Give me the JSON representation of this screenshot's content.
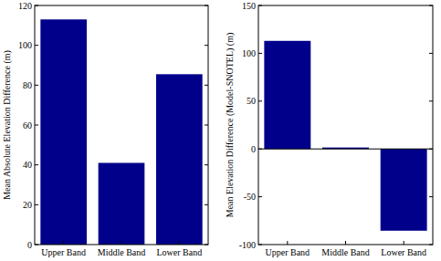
{
  "chart_data": [
    {
      "type": "bar",
      "ylabel": "Mean Absolute Elevation Difference (m)",
      "categories": [
        "Upper Band",
        "Middle Band",
        "Lower Band"
      ],
      "values": [
        113,
        41,
        85.5
      ],
      "color": "#00008b",
      "ylim": [
        0,
        120
      ],
      "yticks": [
        0,
        20,
        40,
        60,
        80,
        100,
        120
      ],
      "grid": false
    },
    {
      "type": "bar",
      "ylabel": "Mean Elevation Difference (Model-SNOTEL) (m)",
      "categories": [
        "Upper Band",
        "Middle Band",
        "Lower Band"
      ],
      "values": [
        113,
        1.5,
        -85.5
      ],
      "color": "#00008b",
      "ylim": [
        -100,
        150
      ],
      "yticks": [
        -100,
        -50,
        0,
        50,
        100,
        150
      ],
      "grid": false
    }
  ]
}
